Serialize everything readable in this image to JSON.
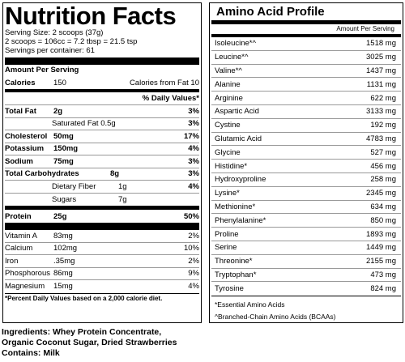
{
  "nutrition": {
    "title": "Nutrition Facts",
    "serving_size": "Serving Size: 2 scoops (37g)",
    "scoops_eq": "2 scoops = 106cc = 7.2 tbsp = 21.5 tsp",
    "servings_per_container": "Servings per container: 61",
    "amount_per_serving": "Amount Per Serving",
    "calories_label": "Calories",
    "calories_value": "150",
    "calories_from_fat": "Calories from Fat 10",
    "daily_value_header": "% Daily Values*",
    "rows": [
      {
        "label": "Total Fat",
        "value": "2g",
        "pct": "3%",
        "bold": true,
        "indent": false
      },
      {
        "label": "Saturated Fat 0.5g",
        "value": "",
        "pct": "3%",
        "bold": false,
        "indent": true
      },
      {
        "label": "Cholesterol",
        "value": "50mg",
        "pct": "17%",
        "bold": true,
        "indent": false
      },
      {
        "label": "Potassium",
        "value": "150mg",
        "pct": "4%",
        "bold": true,
        "indent": false
      },
      {
        "label": "Sodium",
        "value": "75mg",
        "pct": "3%",
        "bold": true,
        "indent": false
      },
      {
        "label": "Total Carbohydrates",
        "value": "8g",
        "pct": "3%",
        "bold": true,
        "indent": false
      },
      {
        "label": "Dietary Fiber",
        "value": "1g",
        "pct": "4%",
        "bold": false,
        "indent": true
      },
      {
        "label": "Sugars",
        "value": "7g",
        "pct": "",
        "bold": false,
        "indent": true
      }
    ],
    "protein": {
      "label": "Protein",
      "value": "25g",
      "pct": "50%"
    },
    "vitamins": [
      {
        "label": "Vitamin A",
        "value": "83mg",
        "pct": "2%"
      },
      {
        "label": "Calcium",
        "value": "102mg",
        "pct": "10%"
      },
      {
        "label": "Iron",
        "value": ".35mg",
        "pct": "2%"
      },
      {
        "label": "Phosphorous",
        "value": "86mg",
        "pct": "9%"
      },
      {
        "label": "Magnesium",
        "value": "15mg",
        "pct": "4%"
      }
    ],
    "footnote": "*Percent Daily Values based on a 2,000 calorie diet."
  },
  "ingredients": {
    "line1": "Ingredients: Whey Protein Concentrate,",
    "line2": "Organic Coconut Sugar, Dried Strawberries",
    "contains": "Contains: Milk"
  },
  "amino": {
    "title": "Amino Acid Profile",
    "header": "Amount Per Serving",
    "rows": [
      {
        "name": "Isoleucine*^",
        "amount": "1518 mg"
      },
      {
        "name": "Leucine*^",
        "amount": "3025 mg"
      },
      {
        "name": "Valine*^",
        "amount": "1437 mg"
      },
      {
        "name": "Alanine",
        "amount": "1131 mg"
      },
      {
        "name": "Arginine",
        "amount": "622 mg"
      },
      {
        "name": "Aspartic Acid",
        "amount": "3133 mg"
      },
      {
        "name": "Cystine",
        "amount": "192 mg"
      },
      {
        "name": "Glutamic Acid",
        "amount": "4783 mg"
      },
      {
        "name": "Glycine",
        "amount": "527 mg"
      },
      {
        "name": "Histidine*",
        "amount": "456 mg"
      },
      {
        "name": "Hydroxyproline",
        "amount": "258 mg"
      },
      {
        "name": "Lysine*",
        "amount": "2345 mg"
      },
      {
        "name": "Methionine*",
        "amount": "634 mg"
      },
      {
        "name": "Phenylalanine*",
        "amount": "850 mg"
      },
      {
        "name": "Proline",
        "amount": "1893 mg"
      },
      {
        "name": "Serine",
        "amount": "1449 mg"
      },
      {
        "name": "Threonine*",
        "amount": "2155 mg"
      },
      {
        "name": "Tryptophan*",
        "amount": "473 mg"
      },
      {
        "name": "Tyrosine",
        "amount": "824 mg"
      }
    ],
    "note1": "*Essential Amino Acids",
    "note2": "^Branched-Chain Amino Acids (BCAAs)"
  }
}
